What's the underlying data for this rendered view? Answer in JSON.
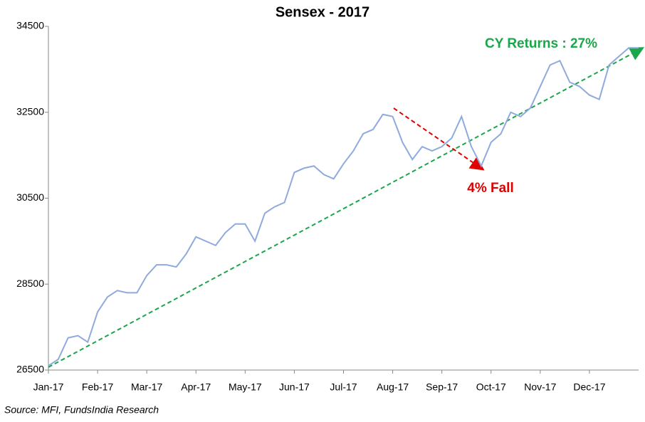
{
  "chart_data": {
    "type": "line",
    "title": "Sensex - 2017",
    "categories": [
      "Jan-17",
      null,
      null,
      null,
      null,
      "Feb-17",
      null,
      null,
      null,
      null,
      "Mar-17",
      null,
      null,
      null,
      null,
      "Apr-17",
      null,
      null,
      null,
      null,
      "May-17",
      null,
      null,
      null,
      null,
      "Jun-17",
      null,
      null,
      null,
      null,
      "Jul-17",
      null,
      null,
      null,
      null,
      "Aug-17",
      null,
      null,
      null,
      null,
      "Sep-17",
      null,
      null,
      null,
      null,
      "Oct-17",
      null,
      null,
      null,
      null,
      "Nov-17",
      null,
      null,
      null,
      null,
      "Dec-17",
      null,
      null,
      null,
      null,
      null
    ],
    "series": [
      {
        "name": "Sensex",
        "color": "#8faadc",
        "values": [
          26600,
          26750,
          27250,
          27300,
          27150,
          27850,
          28200,
          28350,
          28300,
          28300,
          28700,
          28950,
          28950,
          28900,
          29200,
          29600,
          29500,
          29400,
          29700,
          29900,
          29900,
          29500,
          30150,
          30300,
          30400,
          31100,
          31200,
          31250,
          31050,
          30950,
          31300,
          31600,
          32000,
          32100,
          32450,
          32400,
          31800,
          31400,
          31700,
          31600,
          31700,
          31900,
          32400,
          31700,
          31250,
          31800,
          32000,
          32500,
          32400,
          32600,
          33100,
          33600,
          33700,
          33200,
          33100,
          32900,
          32800,
          33600,
          33800,
          34000,
          34000
        ]
      }
    ],
    "ylim": [
      26500,
      34500
    ],
    "yticks": [
      26500,
      28500,
      30500,
      32500,
      34500
    ],
    "grid": false,
    "annotations": [
      "CY Returns : 27%",
      "4% Fall"
    ],
    "source": "Source: MFI, FundsIndia Research"
  }
}
